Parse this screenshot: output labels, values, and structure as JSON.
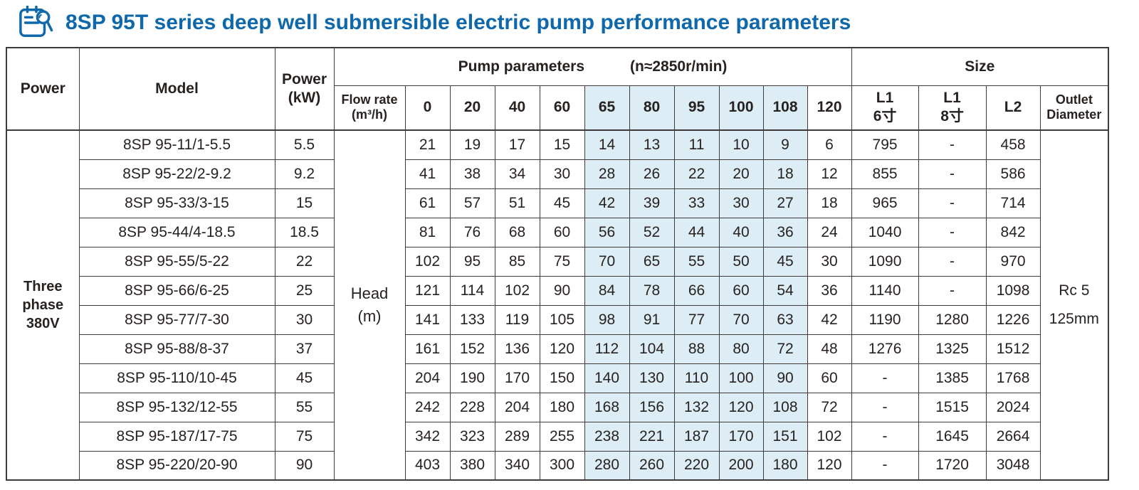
{
  "title": "8SP 95T series deep well submersible electric pump performance parameters",
  "icons": {
    "header": "clipboard-search-icon"
  },
  "colors": {
    "title_blue": "#0e68aa",
    "highlight_blue": "#ddedf6",
    "table_border": "#3d3a39"
  },
  "table": {
    "headers": {
      "power": "Power",
      "model": "Model",
      "power_kw": "Power\n(kW)",
      "pump_parameters": "Pump parameters",
      "pump_speed": "(n≈2850r/min)",
      "size": "Size",
      "flow_rate": "Flow rate\n(m³/h)",
      "flow_values": [
        "0",
        "20",
        "40",
        "60",
        "65",
        "80",
        "95",
        "100",
        "108",
        "120"
      ],
      "l1_6": "L1\n6寸",
      "l1_8": "L1\n8寸",
      "l2": "L2",
      "outlet_diameter": "Outlet\nDiameter"
    },
    "power_phase": "Three\nphase\n380V",
    "head_label": "Head\n(m)",
    "outlet_value": "Rc 5\n125mm",
    "rows": [
      {
        "model": "8SP 95-11/1-5.5",
        "power_kw": "5.5",
        "heads": [
          "21",
          "19",
          "17",
          "15",
          "14",
          "13",
          "11",
          "10",
          "9",
          "6"
        ],
        "l1_6": "795",
        "l1_8": "-",
        "l2": "458"
      },
      {
        "model": "8SP 95-22/2-9.2",
        "power_kw": "9.2",
        "heads": [
          "41",
          "38",
          "34",
          "30",
          "28",
          "26",
          "22",
          "20",
          "18",
          "12"
        ],
        "l1_6": "855",
        "l1_8": "-",
        "l2": "586"
      },
      {
        "model": "8SP 95-33/3-15",
        "power_kw": "15",
        "heads": [
          "61",
          "57",
          "51",
          "45",
          "42",
          "39",
          "33",
          "30",
          "27",
          "18"
        ],
        "l1_6": "965",
        "l1_8": "-",
        "l2": "714"
      },
      {
        "model": "8SP 95-44/4-18.5",
        "power_kw": "18.5",
        "heads": [
          "81",
          "76",
          "68",
          "60",
          "56",
          "52",
          "44",
          "40",
          "36",
          "24"
        ],
        "l1_6": "1040",
        "l1_8": "-",
        "l2": "842"
      },
      {
        "model": "8SP 95-55/5-22",
        "power_kw": "22",
        "heads": [
          "102",
          "95",
          "85",
          "75",
          "70",
          "65",
          "55",
          "50",
          "45",
          "30"
        ],
        "l1_6": "1090",
        "l1_8": "-",
        "l2": "970"
      },
      {
        "model": "8SP 95-66/6-25",
        "power_kw": "25",
        "heads": [
          "121",
          "114",
          "102",
          "90",
          "84",
          "78",
          "66",
          "60",
          "54",
          "36"
        ],
        "l1_6": "1140",
        "l1_8": "-",
        "l2": "1098"
      },
      {
        "model": "8SP 95-77/7-30",
        "power_kw": "30",
        "heads": [
          "141",
          "133",
          "119",
          "105",
          "98",
          "91",
          "77",
          "70",
          "63",
          "42"
        ],
        "l1_6": "1190",
        "l1_8": "1280",
        "l2": "1226"
      },
      {
        "model": "8SP 95-88/8-37",
        "power_kw": "37",
        "heads": [
          "161",
          "152",
          "136",
          "120",
          "112",
          "104",
          "88",
          "80",
          "72",
          "48"
        ],
        "l1_6": "1276",
        "l1_8": "1325",
        "l2": "1512"
      },
      {
        "model": "8SP 95-110/10-45",
        "power_kw": "45",
        "heads": [
          "204",
          "190",
          "170",
          "150",
          "140",
          "130",
          "110",
          "100",
          "90",
          "60"
        ],
        "l1_6": "-",
        "l1_8": "1385",
        "l2": "1768"
      },
      {
        "model": "8SP 95-132/12-55",
        "power_kw": "55",
        "heads": [
          "242",
          "228",
          "204",
          "180",
          "168",
          "156",
          "132",
          "120",
          "108",
          "72"
        ],
        "l1_6": "-",
        "l1_8": "1515",
        "l2": "2024"
      },
      {
        "model": "8SP 95-187/17-75",
        "power_kw": "75",
        "heads": [
          "342",
          "323",
          "289",
          "255",
          "238",
          "221",
          "187",
          "170",
          "151",
          "102"
        ],
        "l1_6": "-",
        "l1_8": "1645",
        "l2": "2664"
      },
      {
        "model": "8SP 95-220/20-90",
        "power_kw": "90",
        "heads": [
          "403",
          "380",
          "340",
          "300",
          "280",
          "260",
          "220",
          "200",
          "180",
          "120"
        ],
        "l1_6": "-",
        "l1_8": "1720",
        "l2": "3048"
      }
    ]
  }
}
